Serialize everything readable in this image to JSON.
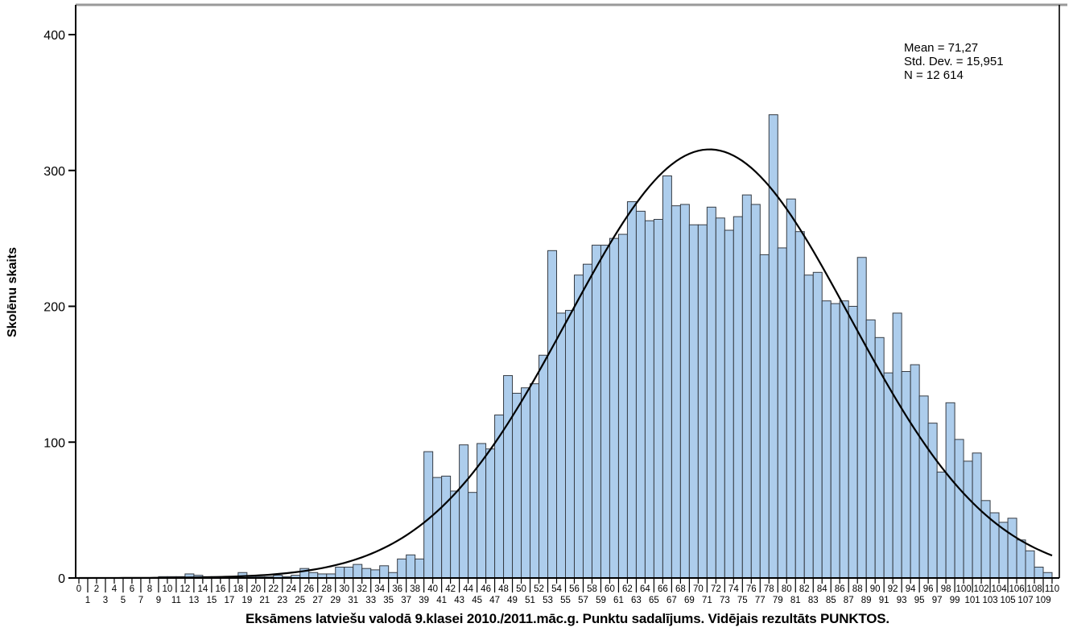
{
  "chart_data": {
    "type": "bar",
    "subtype": "histogram-with-normal-curve",
    "xlabel": "Eksāmens latviešu valodā 9.klasei 2010./2011.māc.g. Punktu sadalījums. Vidējais rezultāts PUNKTOS.",
    "ylabel": "Skolēnu skaits",
    "stats": {
      "mean": "Mean = 71,27",
      "std_dev": "Std. Dev. = 15,951",
      "n": "N = 12 614"
    },
    "bin_start": 0,
    "bin_width": 1,
    "x_range": [
      0,
      110
    ],
    "ylim": [
      0,
      422
    ],
    "y_ticks": [
      0,
      100,
      200,
      300,
      400
    ],
    "x_ticks": [
      0,
      1,
      2,
      3,
      4,
      5,
      6,
      7,
      8,
      9,
      10,
      11,
      12,
      13,
      14,
      15,
      16,
      17,
      18,
      19,
      20,
      21,
      22,
      23,
      24,
      25,
      26,
      27,
      28,
      29,
      30,
      31,
      32,
      33,
      34,
      35,
      36,
      37,
      38,
      39,
      40,
      41,
      42,
      43,
      44,
      45,
      46,
      47,
      48,
      49,
      50,
      51,
      52,
      53,
      54,
      55,
      56,
      57,
      58,
      59,
      60,
      61,
      62,
      63,
      64,
      65,
      66,
      67,
      68,
      69,
      70,
      71,
      72,
      73,
      74,
      75,
      76,
      77,
      78,
      79,
      80,
      81,
      82,
      83,
      84,
      85,
      86,
      87,
      88,
      89,
      90,
      91,
      92,
      93,
      94,
      95,
      96,
      97,
      98,
      99,
      100,
      101,
      102,
      103,
      104,
      105,
      106,
      107,
      108,
      109,
      110
    ],
    "values": [
      0,
      0,
      0,
      0,
      0,
      0,
      0,
      0,
      0,
      1,
      1,
      1,
      3,
      2,
      1,
      1,
      1,
      1,
      4,
      1,
      1,
      1,
      2,
      1,
      2,
      7,
      4,
      3,
      3,
      8,
      8,
      10,
      7,
      6,
      9,
      4,
      14,
      17,
      14,
      93,
      74,
      75,
      64,
      98,
      63,
      99,
      95,
      120,
      149,
      136,
      140,
      143,
      164,
      241,
      195,
      197,
      223,
      231,
      245,
      245,
      250,
      253,
      277,
      270,
      263,
      264,
      296,
      274,
      275,
      260,
      260,
      273,
      265,
      256,
      266,
      282,
      275,
      238,
      341,
      243,
      279,
      255,
      223,
      225,
      204,
      202,
      204,
      200,
      236,
      190,
      177,
      151,
      195,
      152,
      157,
      134,
      114,
      78,
      129,
      102,
      86,
      92,
      57,
      48,
      41,
      44,
      28,
      20,
      8,
      4
    ],
    "normal_curve": {
      "mean": 71.27,
      "sd": 15.951,
      "n": 12614,
      "peak": 315.5
    },
    "legend": "none",
    "grid": "off",
    "colors": {
      "bar_fill": "#ADCDEC",
      "bar_stroke": "#363C44",
      "curve": "#000000",
      "axis": "#000000",
      "frame_top": "#9A9A9A",
      "text": "#000000"
    }
  }
}
